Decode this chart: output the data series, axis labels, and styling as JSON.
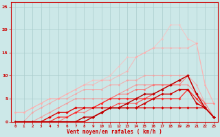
{
  "title": "",
  "xlabel": "Vent moyen/en rafales ( km/h )",
  "bg_color": "#cce8e8",
  "grid_color": "#aacccc",
  "xlim": [
    -0.5,
    23.5
  ],
  "ylim": [
    0,
    26
  ],
  "yticks": [
    0,
    5,
    10,
    15,
    20,
    25
  ],
  "xticks": [
    0,
    1,
    2,
    3,
    4,
    5,
    6,
    7,
    8,
    9,
    10,
    11,
    12,
    13,
    14,
    15,
    16,
    17,
    18,
    19,
    20,
    21,
    22,
    23
  ],
  "series": [
    {
      "x": [
        0,
        1,
        2,
        3,
        4,
        5,
        6,
        7,
        8,
        9,
        10,
        11,
        12,
        13,
        14,
        15,
        16,
        17,
        18,
        19,
        20,
        21,
        22,
        23
      ],
      "y": [
        2,
        2,
        3,
        4,
        5,
        5,
        6,
        7,
        8,
        9,
        9,
        10,
        12,
        14,
        14,
        15,
        16,
        18,
        21,
        21,
        18,
        17,
        8,
        4
      ],
      "color": "#ffbbbb",
      "lw": 0.8,
      "marker": "D",
      "markersize": 1.5,
      "alpha": 0.7
    },
    {
      "x": [
        0,
        1,
        2,
        3,
        4,
        5,
        6,
        7,
        8,
        9,
        10,
        11,
        12,
        13,
        14,
        15,
        16,
        17,
        18,
        19,
        20,
        21,
        22,
        23
      ],
      "y": [
        2,
        2,
        3,
        4,
        5,
        5,
        6,
        7,
        8,
        8,
        9,
        9,
        10,
        11,
        14,
        15,
        16,
        16,
        16,
        16,
        16,
        17,
        8,
        4
      ],
      "color": "#ffaaaa",
      "lw": 0.8,
      "marker": "D",
      "markersize": 1.5,
      "alpha": 0.7
    },
    {
      "x": [
        0,
        1,
        2,
        3,
        4,
        5,
        6,
        7,
        8,
        9,
        10,
        11,
        12,
        13,
        14,
        15,
        16,
        17,
        18,
        19,
        20,
        21,
        22,
        23
      ],
      "y": [
        0,
        0,
        2,
        3,
        4,
        5,
        5,
        6,
        7,
        7,
        7,
        8,
        8,
        9,
        9,
        10,
        10,
        10,
        10,
        10,
        10,
        8,
        4,
        4
      ],
      "color": "#ff9999",
      "lw": 0.8,
      "marker": "D",
      "markersize": 1.5,
      "alpha": 0.7
    },
    {
      "x": [
        0,
        1,
        2,
        3,
        4,
        5,
        6,
        7,
        8,
        9,
        10,
        11,
        12,
        13,
        14,
        15,
        16,
        17,
        18,
        19,
        20,
        21,
        22,
        23
      ],
      "y": [
        0,
        0,
        0,
        1,
        2,
        3,
        4,
        5,
        5,
        5,
        5,
        5,
        6,
        7,
        8,
        8,
        8,
        8,
        8,
        8,
        8,
        6,
        4,
        4
      ],
      "color": "#ff8888",
      "lw": 0.8,
      "marker": "D",
      "markersize": 1.5,
      "alpha": 0.75
    },
    {
      "x": [
        0,
        1,
        2,
        3,
        4,
        5,
        6,
        7,
        8,
        9,
        10,
        11,
        12,
        13,
        14,
        15,
        16,
        17,
        18,
        19,
        20,
        21,
        22,
        23
      ],
      "y": [
        0,
        0,
        0,
        0,
        0,
        0,
        1,
        2,
        2,
        3,
        4,
        5,
        6,
        6,
        7,
        7,
        8,
        8,
        8,
        8,
        10,
        6,
        4,
        1
      ],
      "color": "#ff6666",
      "lw": 0.8,
      "marker": "D",
      "markersize": 1.5,
      "alpha": 0.8
    },
    {
      "x": [
        0,
        1,
        2,
        3,
        4,
        5,
        6,
        7,
        8,
        9,
        10,
        11,
        12,
        13,
        14,
        15,
        16,
        17,
        18,
        19,
        20,
        21,
        22,
        23
      ],
      "y": [
        0,
        0,
        0,
        0,
        0,
        0,
        0,
        0,
        0,
        1,
        2,
        3,
        4,
        4,
        4,
        5,
        6,
        7,
        8,
        9,
        10,
        6,
        3,
        1
      ],
      "color": "#ff4444",
      "lw": 0.9,
      "marker": "D",
      "markersize": 1.8,
      "alpha": 0.9
    },
    {
      "x": [
        0,
        1,
        2,
        3,
        4,
        5,
        6,
        7,
        8,
        9,
        10,
        11,
        12,
        13,
        14,
        15,
        16,
        17,
        18,
        19,
        20,
        21,
        22,
        23
      ],
      "y": [
        0,
        0,
        0,
        0,
        0,
        1,
        1,
        2,
        3,
        3,
        4,
        5,
        5,
        5,
        5,
        5,
        5,
        5,
        5,
        5,
        7,
        5,
        3,
        1
      ],
      "color": "#ff2222",
      "lw": 0.9,
      "marker": "D",
      "markersize": 1.8,
      "alpha": 0.95
    },
    {
      "x": [
        0,
        1,
        2,
        3,
        4,
        5,
        6,
        7,
        8,
        9,
        10,
        11,
        12,
        13,
        14,
        15,
        16,
        17,
        18,
        19,
        20,
        21,
        22,
        23
      ],
      "y": [
        0,
        0,
        0,
        0,
        1,
        2,
        2,
        3,
        3,
        3,
        3,
        3,
        3,
        3,
        3,
        3,
        3,
        3,
        3,
        3,
        3,
        3,
        3,
        1
      ],
      "color": "#dd0000",
      "lw": 1.0,
      "marker": "D",
      "markersize": 2.0,
      "alpha": 1.0
    },
    {
      "x": [
        0,
        1,
        2,
        3,
        4,
        5,
        6,
        7,
        8,
        9,
        10,
        11,
        12,
        13,
        14,
        15,
        16,
        17,
        18,
        19,
        20,
        21,
        22,
        23
      ],
      "y": [
        0,
        0,
        0,
        0,
        0,
        0,
        0,
        0,
        0,
        1,
        2,
        3,
        3,
        3,
        3,
        4,
        5,
        6,
        6,
        7,
        7,
        4,
        3,
        1
      ],
      "color": "#cc0000",
      "lw": 1.0,
      "marker": "D",
      "markersize": 2.0,
      "alpha": 1.0
    },
    {
      "x": [
        0,
        1,
        2,
        3,
        4,
        5,
        6,
        7,
        8,
        9,
        10,
        11,
        12,
        13,
        14,
        15,
        16,
        17,
        18,
        19,
        20,
        21,
        22,
        23
      ],
      "y": [
        0,
        0,
        0,
        0,
        0,
        0,
        0,
        0,
        1,
        1,
        2,
        3,
        3,
        4,
        5,
        6,
        6,
        7,
        8,
        9,
        10,
        6,
        3,
        1
      ],
      "color": "#bb0000",
      "lw": 1.0,
      "marker": "D",
      "markersize": 2.0,
      "alpha": 1.0
    }
  ]
}
